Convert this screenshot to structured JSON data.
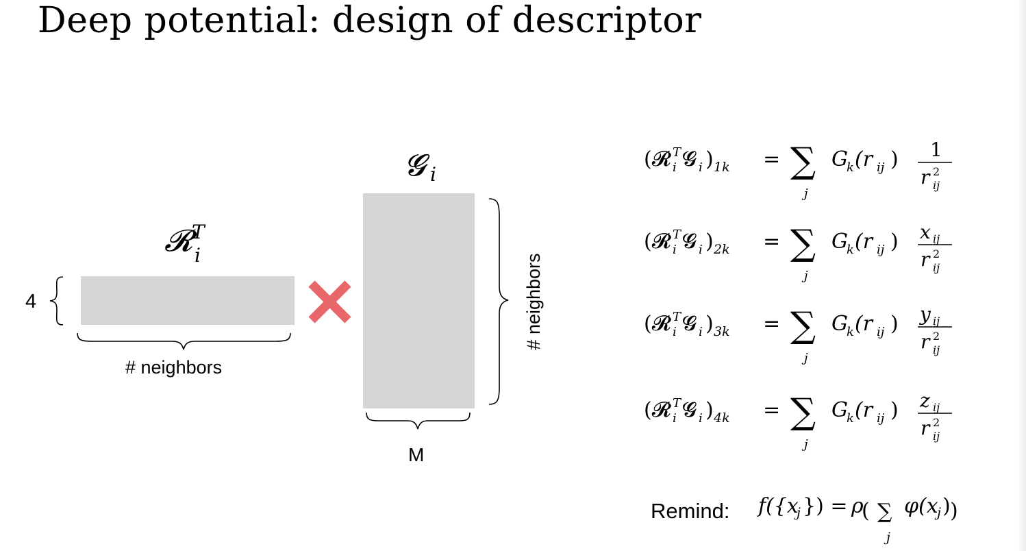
{
  "slide": {
    "title": "Deep potential: design of descriptor",
    "matrix_R": {
      "symbol": "𝓡",
      "superscript": "T",
      "subscript": "i",
      "rows_label": "4",
      "cols_label": "# neighbors"
    },
    "operator": "multiply-cross",
    "matrix_G": {
      "symbol": "𝓖",
      "subscript": "i",
      "rows_label": "# neighbors",
      "cols_label": "M"
    },
    "colors": {
      "matrix_fill": "#d6d6d6",
      "cross": "#e8676b"
    },
    "equations": [
      {
        "index": "1k",
        "numerator": "1",
        "lhs": "(𝓡ᵢᵀ𝓖ᵢ)₁ₖ = Σⱼ Gₖ(rᵢⱼ) 1/rᵢⱼ²"
      },
      {
        "index": "2k",
        "numerator": "x",
        "lhs": "(𝓡ᵢᵀ𝓖ᵢ)₂ₖ = Σⱼ Gₖ(rᵢⱼ) xᵢⱼ/rᵢⱼ²"
      },
      {
        "index": "3k",
        "numerator": "y",
        "lhs": "(𝓡ᵢᵀ𝓖ᵢ)₃ₖ = Σⱼ Gₖ(rᵢⱼ) yᵢⱼ/rᵢⱼ²"
      },
      {
        "index": "4k",
        "numerator": "z",
        "lhs": "(𝓡ᵢᵀ𝓖ᵢ)₄ₖ = Σⱼ Gₖ(rᵢⱼ) zᵢⱼ/rᵢⱼ²"
      }
    ],
    "remind": {
      "label": "Remind:",
      "formula": "f({xⱼ}) = ρ( Σⱼ φ(xⱼ) )"
    }
  }
}
